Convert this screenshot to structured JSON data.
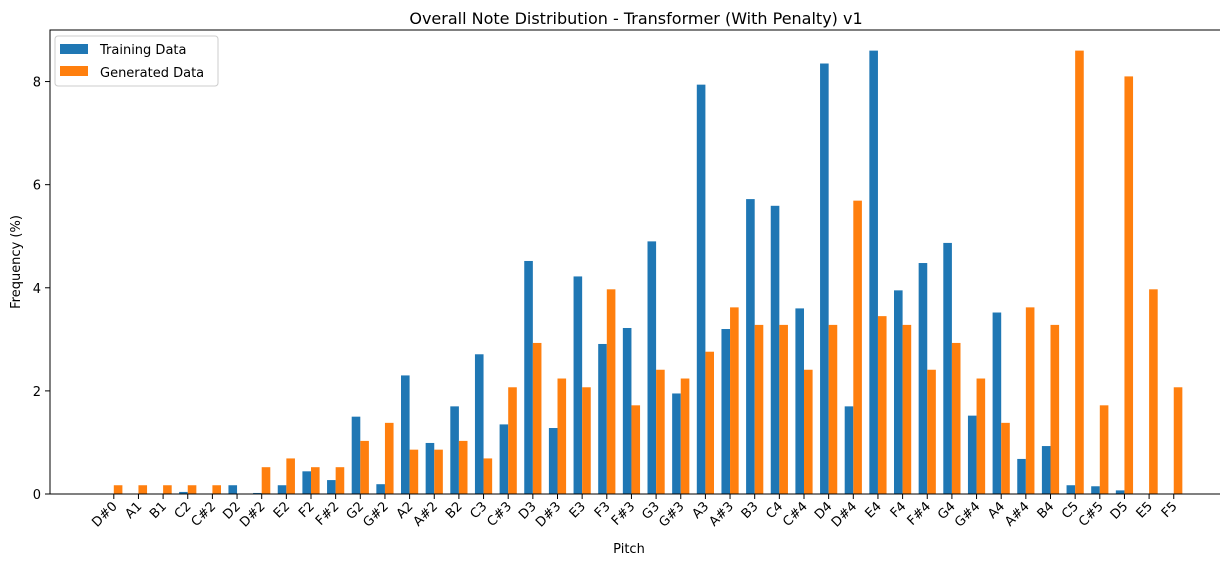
{
  "chart_data": {
    "type": "bar",
    "title": "Overall Note Distribution - Transformer (With Penalty) v1",
    "xlabel": "Pitch",
    "ylabel": "Frequency (%)",
    "ylim": [
      0,
      9
    ],
    "yticks": [
      0,
      2,
      4,
      6,
      8
    ],
    "legend_position": "top-left",
    "categories": [
      "D#0",
      "A1",
      "B1",
      "C2",
      "C#2",
      "D2",
      "D#2",
      "E2",
      "F2",
      "F#2",
      "G2",
      "G#2",
      "A2",
      "A#2",
      "B2",
      "C3",
      "C#3",
      "D3",
      "D#3",
      "E3",
      "F3",
      "F#3",
      "G3",
      "G#3",
      "A3",
      "A#3",
      "B3",
      "C4",
      "C#4",
      "D4",
      "D#4",
      "E4",
      "F4",
      "F#4",
      "G4",
      "G#4",
      "A4",
      "A#4",
      "B4",
      "C5",
      "C#5",
      "D5",
      "E5",
      "F5"
    ],
    "series": [
      {
        "name": "Training Data",
        "color": "#1f77b4",
        "values": [
          0,
          0,
          0,
          0.04,
          0,
          0.17,
          0.02,
          0.17,
          0.44,
          0.27,
          1.5,
          0.19,
          2.3,
          0.99,
          1.7,
          2.71,
          1.35,
          4.52,
          1.28,
          4.22,
          2.91,
          3.22,
          4.9,
          1.95,
          7.94,
          3.2,
          5.72,
          5.59,
          3.6,
          8.35,
          1.7,
          8.6,
          3.95,
          4.48,
          4.87,
          1.52,
          3.52,
          0.68,
          0.93,
          0.17,
          0.15,
          0.07,
          0,
          0
        ]
      },
      {
        "name": "Generated Data",
        "color": "#ff7f0e",
        "values": [
          0.17,
          0.17,
          0.17,
          0.17,
          0.17,
          0,
          0.52,
          0.69,
          0.52,
          0.52,
          1.03,
          1.38,
          0.86,
          0.86,
          1.03,
          0.69,
          2.07,
          2.93,
          2.24,
          2.07,
          3.97,
          1.72,
          2.41,
          2.24,
          2.76,
          3.62,
          3.28,
          3.28,
          2.41,
          3.28,
          5.69,
          3.45,
          3.28,
          2.41,
          2.93,
          2.24,
          1.38,
          3.62,
          3.28,
          8.6,
          1.72,
          8.1,
          3.97,
          2.07
        ]
      }
    ]
  }
}
